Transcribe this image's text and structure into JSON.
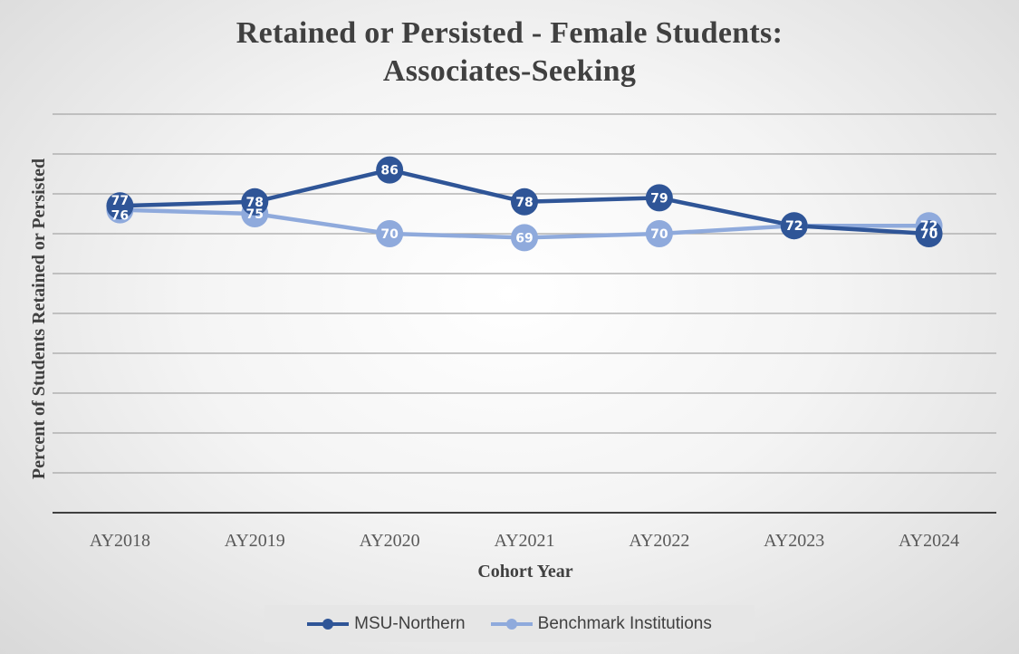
{
  "chart_data": {
    "type": "line",
    "title": [
      "Retained or Persisted - Female Students:",
      "Associates-Seeking"
    ],
    "xlabel": "Cohort Year",
    "ylabel": "Percent of  Students Retained or Persisted",
    "categories": [
      "AY2018",
      "AY2019",
      "AY2020",
      "AY2021",
      "AY2022",
      "AY2023",
      "AY2024"
    ],
    "ylim": [
      0,
      100
    ],
    "grid": true,
    "legend_position": "bottom",
    "series": [
      {
        "name": "MSU-Northern",
        "color": "#2f5597",
        "values": [
          77,
          78,
          86,
          78,
          79,
          72,
          70
        ]
      },
      {
        "name": "Benchmark Institutions",
        "color": "#8faadc",
        "values": [
          76,
          75,
          70,
          69,
          70,
          72,
          72
        ]
      }
    ]
  }
}
